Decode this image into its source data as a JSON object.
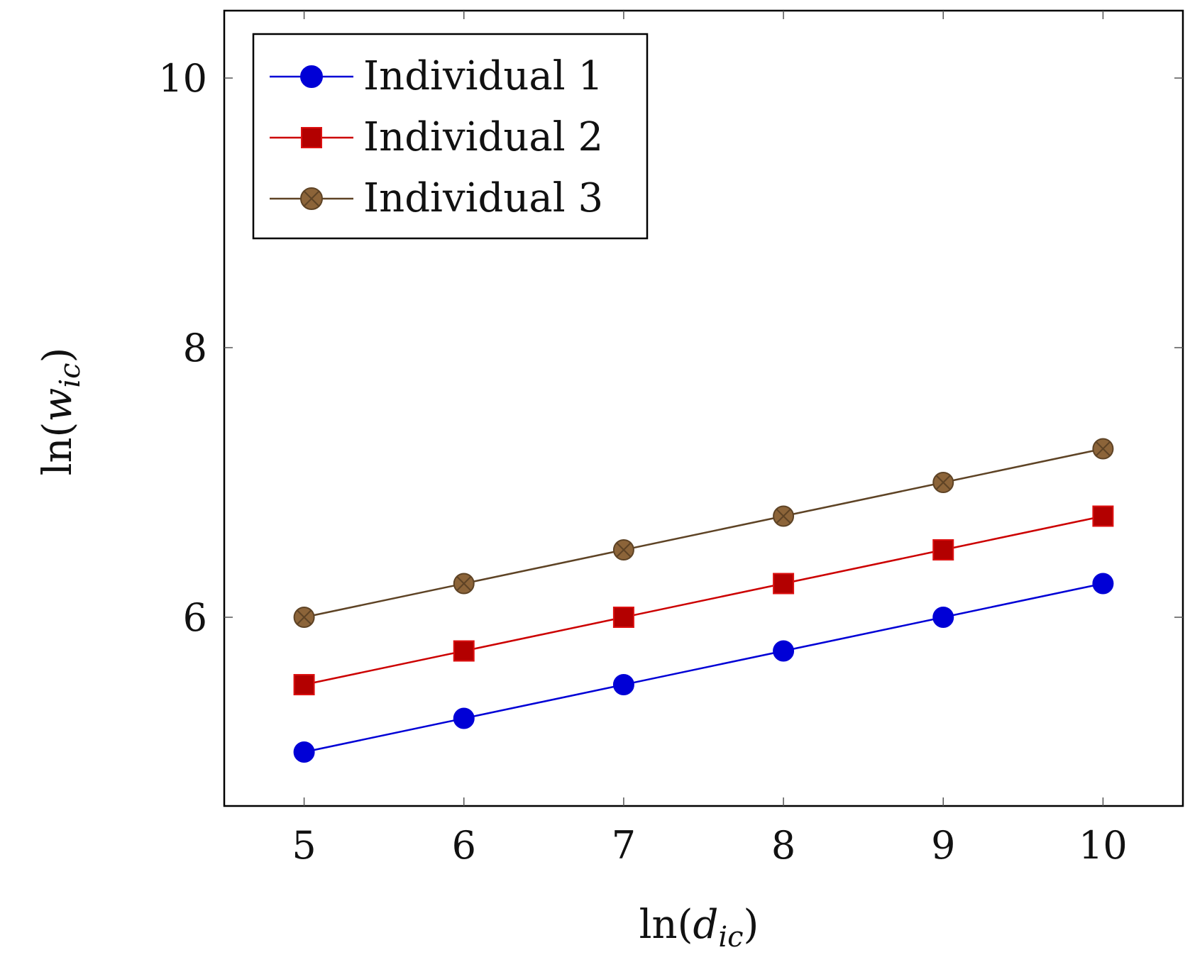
{
  "chart_data": {
    "type": "line",
    "xlabel": "ln(d_ic)",
    "ylabel": "ln(w_ic)",
    "xlabel_parts": {
      "fn": "ln",
      "var": "d",
      "sub": "ic"
    },
    "ylabel_parts": {
      "fn": "ln",
      "var": "w",
      "sub": "ic"
    },
    "x": [
      5,
      6,
      7,
      8,
      9,
      10
    ],
    "xlim": [
      4.5,
      10.5
    ],
    "ylim": [
      4.6,
      10.5
    ],
    "xticks": [
      "5",
      "6",
      "7",
      "8",
      "9",
      "10"
    ],
    "yticks": [
      "6",
      "8",
      "10"
    ],
    "grid": false,
    "legend_position": "top-left",
    "series": [
      {
        "name": "Individual 1",
        "values": [
          5.0,
          5.25,
          5.5,
          5.75,
          6.0,
          6.25
        ],
        "color": "#0000d6",
        "marker": "circle"
      },
      {
        "name": "Individual 2",
        "values": [
          5.5,
          5.75,
          6.0,
          6.25,
          6.5,
          6.75
        ],
        "color": "#cc0000",
        "marker": "square"
      },
      {
        "name": "Individual 3",
        "values": [
          6.0,
          6.25,
          6.5,
          6.75,
          7.0,
          7.25
        ],
        "color": "#5e4325",
        "marker": "circle-x"
      }
    ]
  }
}
